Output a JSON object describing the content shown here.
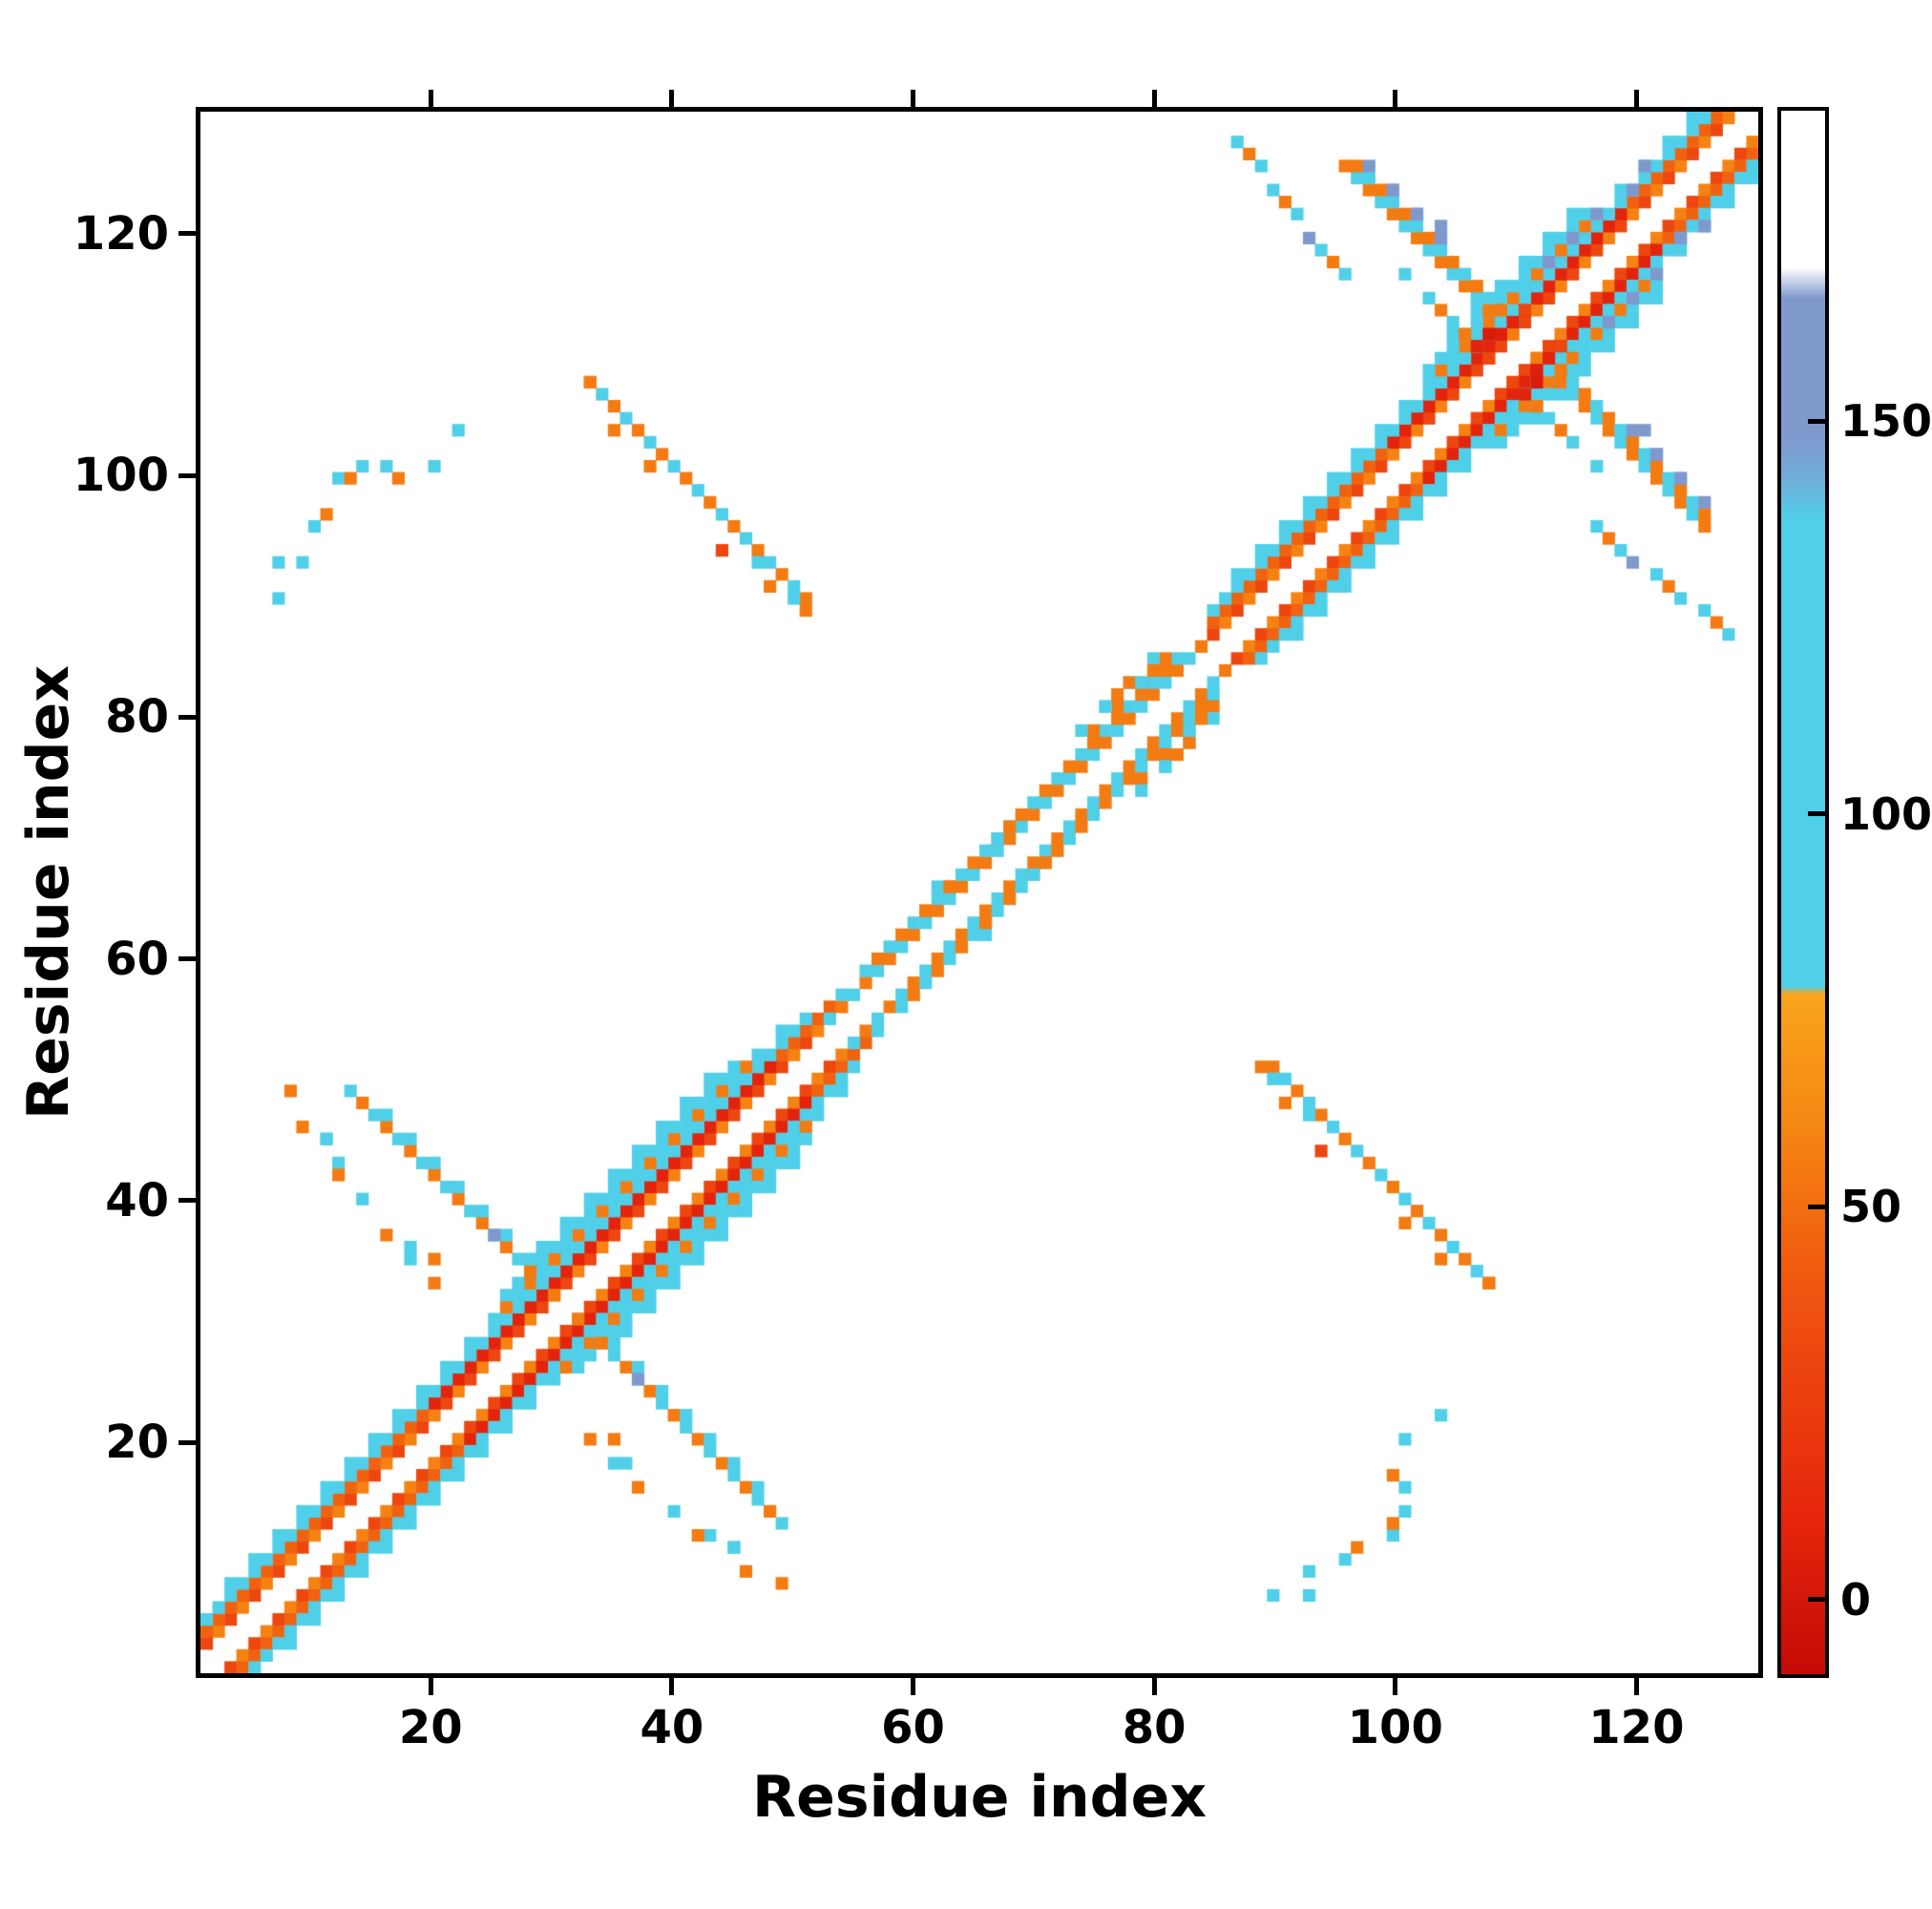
{
  "figure": {
    "background": "#ffffff",
    "frame_color": "#000000"
  },
  "chart_data": {
    "type": "heatmap",
    "title": "",
    "xlabel": "Residue index",
    "ylabel": "Residue index",
    "xlim": [
      1,
      130
    ],
    "ylim": [
      1,
      130
    ],
    "x_ticks": [
      20,
      40,
      60,
      80,
      100,
      120
    ],
    "y_ticks": [
      20,
      40,
      60,
      80,
      100,
      120
    ],
    "grid": false,
    "symmetric": true,
    "legend_position": "colorbar-right",
    "colorbar": {
      "ticks": [
        0,
        50,
        100,
        150
      ],
      "vmin": -10,
      "vmax": 190,
      "stops": [
        [
          -10,
          "#c40a06"
        ],
        [
          10,
          "#e6260c"
        ],
        [
          40,
          "#f0560f"
        ],
        [
          60,
          "#f58713"
        ],
        [
          77,
          "#f9a41d"
        ],
        [
          78,
          "#50cfe9"
        ],
        [
          138,
          "#50cfe9"
        ],
        [
          142,
          "#6db4dd"
        ],
        [
          148,
          "#8099cd"
        ],
        [
          166,
          "#8099cd"
        ],
        [
          170,
          "#ffffff"
        ],
        [
          190,
          "#ffffff"
        ]
      ]
    },
    "diagonal_segments": [
      {
        "i0": 1,
        "i1": 52,
        "d": 2,
        "v": 58,
        "alt": 2
      },
      {
        "i0": 1,
        "i1": 52,
        "d": 2,
        "v": 30,
        "alt": 1
      },
      {
        "i0": 1,
        "i1": 19,
        "d": 3,
        "v": 45,
        "alt": 0
      },
      {
        "i0": 20,
        "i1": 48,
        "d": 3,
        "v": 8,
        "alt": 0
      },
      {
        "i0": 49,
        "i1": 53,
        "d": 3,
        "v": 45,
        "alt": 0
      },
      {
        "i0": 1,
        "i1": 51,
        "d": 4,
        "v": 100,
        "alt": 0
      },
      {
        "i0": 3,
        "i1": 50,
        "d": 5,
        "v": 100,
        "alt": 1
      },
      {
        "i0": 26,
        "i1": 46,
        "d": 5,
        "v": 55,
        "alt": 2
      },
      {
        "i0": 26,
        "i1": 45,
        "d": 6,
        "v": 100,
        "alt": 0
      },
      {
        "i0": 28,
        "i1": 44,
        "d": 7,
        "v": 100,
        "alt": 1
      },
      {
        "i0": 53,
        "i1": 84,
        "d": 2,
        "v": 55,
        "alt": 2
      },
      {
        "i0": 53,
        "i1": 84,
        "d": 2,
        "v": 100,
        "alt": 1
      },
      {
        "i0": 54,
        "i1": 83,
        "d": 3,
        "v": 100,
        "alt": 2
      },
      {
        "i0": 56,
        "i1": 82,
        "d": 3,
        "v": 55,
        "alt": 1
      },
      {
        "i0": 74,
        "i1": 82,
        "d": 4,
        "v": 55,
        "alt": 1
      },
      {
        "i0": 74,
        "i1": 81,
        "d": 5,
        "v": 100,
        "alt": 2
      },
      {
        "i0": 85,
        "i1": 128,
        "d": 2,
        "v": 58,
        "alt": 2
      },
      {
        "i0": 85,
        "i1": 128,
        "d": 2,
        "v": 30,
        "alt": 1
      },
      {
        "i0": 85,
        "i1": 99,
        "d": 3,
        "v": 45,
        "alt": 0
      },
      {
        "i0": 100,
        "i1": 119,
        "d": 3,
        "v": 8,
        "alt": 0
      },
      {
        "i0": 120,
        "i1": 127,
        "d": 3,
        "v": 45,
        "alt": 0
      },
      {
        "i0": 85,
        "i1": 126,
        "d": 4,
        "v": 100,
        "alt": 0
      },
      {
        "i0": 86,
        "i1": 125,
        "d": 5,
        "v": 100,
        "alt": 1
      },
      {
        "i0": 103,
        "i1": 117,
        "d": 5,
        "v": 55,
        "alt": 2
      },
      {
        "i0": 103,
        "i1": 116,
        "d": 6,
        "v": 100,
        "alt": 0
      },
      {
        "i0": 104,
        "i1": 115,
        "d": 7,
        "v": 100,
        "alt": 1
      }
    ],
    "antidiagonal_segments": [
      {
        "s": 62,
        "i0": 13,
        "i1": 30,
        "v": 100,
        "alt": 1
      },
      {
        "s": 62,
        "i0": 13,
        "i1": 30,
        "v": 55,
        "alt": 2
      },
      {
        "s": 63,
        "i0": 16,
        "i1": 29,
        "v": 100,
        "alt": 2
      },
      {
        "s": 141,
        "i0": 33,
        "i1": 51,
        "v": 55,
        "alt": 1
      },
      {
        "s": 141,
        "i0": 34,
        "i1": 50,
        "v": 100,
        "alt": 2
      },
      {
        "s": 222,
        "i0": 96,
        "i1": 110,
        "v": 100,
        "alt": 1
      },
      {
        "s": 222,
        "i0": 96,
        "i1": 110,
        "v": 55,
        "alt": 2
      },
      {
        "s": 223,
        "i0": 97,
        "i1": 110,
        "v": 55,
        "alt": 1
      },
      {
        "s": 223,
        "i0": 97,
        "i1": 110,
        "v": 100,
        "alt": 2
      },
      {
        "s": 224,
        "i0": 99,
        "i1": 105,
        "v": 160,
        "alt": 2
      },
      {
        "s": 218,
        "i0": 101,
        "i1": 108,
        "v": 100,
        "alt": 1
      }
    ],
    "points": [
      [
        7,
        90,
        100
      ],
      [
        7,
        93,
        100
      ],
      [
        9,
        93,
        100
      ],
      [
        10,
        96,
        100
      ],
      [
        11,
        97,
        55
      ],
      [
        12,
        100,
        100
      ],
      [
        13,
        100,
        55
      ],
      [
        14,
        101,
        100
      ],
      [
        16,
        101,
        100
      ],
      [
        17,
        100,
        55
      ],
      [
        20,
        101,
        100
      ],
      [
        22,
        104,
        100
      ],
      [
        33,
        108,
        55
      ],
      [
        35,
        104,
        55
      ],
      [
        38,
        101,
        55
      ],
      [
        44,
        94,
        30
      ],
      [
        47,
        93,
        100
      ],
      [
        48,
        91,
        55
      ],
      [
        50,
        90,
        100
      ],
      [
        51,
        89,
        55
      ],
      [
        8,
        49,
        55
      ],
      [
        9,
        46,
        55
      ],
      [
        11,
        45,
        100
      ],
      [
        12,
        43,
        100
      ],
      [
        25,
        37,
        160
      ],
      [
        20,
        35,
        55
      ],
      [
        18,
        36,
        100
      ],
      [
        33,
        20,
        55
      ],
      [
        35,
        18,
        100
      ],
      [
        37,
        16,
        55
      ],
      [
        40,
        14,
        100
      ],
      [
        42,
        12,
        55
      ],
      [
        45,
        11,
        100
      ],
      [
        61,
        64,
        55
      ],
      [
        62,
        66,
        100
      ],
      [
        63,
        66,
        55
      ],
      [
        67,
        70,
        100
      ],
      [
        68,
        71,
        55
      ],
      [
        76,
        81,
        100
      ],
      [
        77,
        82,
        55
      ],
      [
        78,
        83,
        55
      ],
      [
        79,
        83,
        100
      ],
      [
        80,
        84,
        55
      ],
      [
        107,
        111,
        8
      ],
      [
        108,
        112,
        2
      ],
      [
        109,
        112,
        5
      ],
      [
        108,
        110,
        30
      ],
      [
        110,
        113,
        8
      ],
      [
        111,
        114,
        30
      ],
      [
        104,
        114,
        55
      ],
      [
        106,
        112,
        55
      ],
      [
        100,
        124,
        160
      ],
      [
        102,
        122,
        160
      ],
      [
        104,
        121,
        160
      ],
      [
        98,
        126,
        160
      ],
      [
        113,
        118,
        160
      ],
      [
        115,
        120,
        160
      ],
      [
        117,
        122,
        160
      ],
      [
        120,
        124,
        160
      ],
      [
        126,
        121,
        160
      ],
      [
        93,
        120,
        160
      ],
      [
        87,
        128,
        100
      ],
      [
        88,
        127,
        55
      ],
      [
        89,
        126,
        100
      ],
      [
        90,
        124,
        100
      ],
      [
        91,
        123,
        55
      ],
      [
        92,
        122,
        100
      ],
      [
        94,
        119,
        100
      ],
      [
        95,
        118,
        55
      ],
      [
        96,
        117,
        100
      ]
    ]
  }
}
